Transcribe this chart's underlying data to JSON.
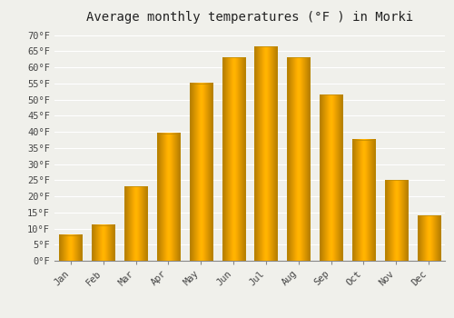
{
  "title": "Average monthly temperatures (°F ) in Morki",
  "months": [
    "Jan",
    "Feb",
    "Mar",
    "Apr",
    "May",
    "Jun",
    "Jul",
    "Aug",
    "Sep",
    "Oct",
    "Nov",
    "Dec"
  ],
  "values": [
    8,
    11,
    23,
    39.5,
    55,
    63,
    66.5,
    63,
    51.5,
    37.5,
    25,
    14
  ],
  "bar_color_left": "#F5A800",
  "bar_color_center": "#FFD050",
  "bar_color_right": "#E09500",
  "background_color": "#f0f0eb",
  "grid_color": "#ffffff",
  "yticks": [
    0,
    5,
    10,
    15,
    20,
    25,
    30,
    35,
    40,
    45,
    50,
    55,
    60,
    65,
    70
  ],
  "ytick_labels": [
    "0°F",
    "5°F",
    "10°F",
    "15°F",
    "20°F",
    "25°F",
    "30°F",
    "35°F",
    "40°F",
    "45°F",
    "50°F",
    "55°F",
    "60°F",
    "65°F",
    "70°F"
  ],
  "ylim": [
    0,
    72
  ],
  "title_fontsize": 10,
  "tick_fontsize": 7.5,
  "font_family": "monospace"
}
